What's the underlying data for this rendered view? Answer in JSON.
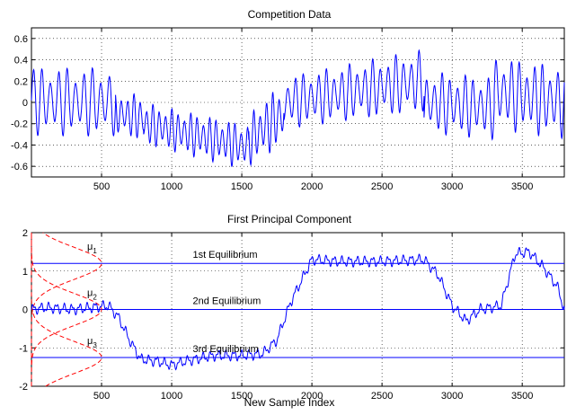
{
  "chart_data": [
    {
      "type": "line",
      "title": "Competition Data",
      "xlabel": "",
      "ylabel": "",
      "xlim": [
        0,
        3800
      ],
      "ylim": [
        -0.7,
        0.7
      ],
      "xticks": [
        500,
        1000,
        1500,
        2000,
        2500,
        3000,
        3500
      ],
      "xtick_labels": [
        "500",
        "1000",
        "1500",
        "2000",
        "2500",
        "3000",
        "3500"
      ],
      "yticks": [
        -0.6,
        -0.4,
        -0.2,
        0,
        0.2,
        0.4,
        0.6
      ],
      "ytick_labels": [
        "-0.6",
        "-0.4",
        "-0.2",
        "0",
        "0.2",
        "0.4",
        "0.6"
      ],
      "grid": true,
      "series": [
        {
          "color": "#0000ff",
          "segments": [
            {
              "x0": 0,
              "x1": 600,
              "base0": 0.02,
              "base1": 0.0,
              "amp0": 0.33,
              "amp1": 0.33,
              "period": 60
            },
            {
              "x0": 600,
              "x1": 800,
              "base0": -0.1,
              "base1": -0.15,
              "amp0": 0.2,
              "amp1": 0.22,
              "period": 45
            },
            {
              "x0": 800,
              "x1": 1550,
              "base0": -0.2,
              "base1": -0.42,
              "amp0": 0.2,
              "amp1": 0.22,
              "period": 45
            },
            {
              "x0": 1550,
              "x1": 1800,
              "base0": -0.35,
              "base1": -0.1,
              "amp0": 0.25,
              "amp1": 0.3,
              "period": 45
            },
            {
              "x0": 1800,
              "x1": 2800,
              "base0": 0.0,
              "base1": 0.2,
              "amp0": 0.25,
              "amp1": 0.3,
              "period": 55
            },
            {
              "x0": 2800,
              "x1": 3300,
              "base0": 0.0,
              "base1": -0.05,
              "amp0": 0.3,
              "amp1": 0.3,
              "period": 55
            },
            {
              "x0": 3300,
              "x1": 3800,
              "base0": 0.1,
              "base1": 0.0,
              "amp0": 0.35,
              "amp1": 0.35,
              "period": 55
            }
          ]
        }
      ]
    },
    {
      "type": "line",
      "title": "First Principal Component",
      "xlabel": "New Sample Index",
      "ylabel": "",
      "xlim": [
        0,
        3800
      ],
      "ylim": [
        -2,
        2
      ],
      "xticks": [
        500,
        1000,
        1500,
        2000,
        2500,
        3000,
        3500
      ],
      "xtick_labels": [
        "500",
        "1000",
        "1500",
        "2000",
        "2500",
        "3000",
        "3500"
      ],
      "yticks": [
        -2,
        -1,
        0,
        1,
        2
      ],
      "ytick_labels": [
        "-2",
        "-1",
        "0",
        "1",
        "2"
      ],
      "grid": true,
      "pc_series": {
        "color": "#0000ff",
        "points": [
          [
            0,
            0
          ],
          [
            100,
            0.05
          ],
          [
            300,
            0.0
          ],
          [
            550,
            0.1
          ],
          [
            620,
            -0.2
          ],
          [
            700,
            -0.8
          ],
          [
            780,
            -1.3
          ],
          [
            900,
            -1.35
          ],
          [
            1000,
            -1.45
          ],
          [
            1100,
            -1.35
          ],
          [
            1300,
            -1.2
          ],
          [
            1500,
            -1.2
          ],
          [
            1650,
            -1.15
          ],
          [
            1750,
            -0.8
          ],
          [
            1850,
            0.2
          ],
          [
            2000,
            1.3
          ],
          [
            2200,
            1.25
          ],
          [
            2500,
            1.25
          ],
          [
            2800,
            1.3
          ],
          [
            2900,
            0.9
          ],
          [
            3000,
            0.1
          ],
          [
            3100,
            -0.3
          ],
          [
            3200,
            0.0
          ],
          [
            3350,
            0.1
          ],
          [
            3450,
            1.45
          ],
          [
            3550,
            1.5
          ],
          [
            3650,
            1.1
          ],
          [
            3750,
            0.6
          ],
          [
            3800,
            0.0
          ]
        ]
      },
      "equilibria": [
        {
          "label": "1st Equilibrium",
          "y": 1.2,
          "color": "#0000ff"
        },
        {
          "label": "2nd Equilibrium",
          "y": 0.0,
          "color": "#0000ff"
        },
        {
          "label": "3rd Equilibrium",
          "y": -1.25,
          "color": "#0000ff"
        }
      ],
      "gaussians": [
        {
          "label": "μ",
          "sub": "1",
          "mean": 1.2,
          "sd": 0.42,
          "peak": 500
        },
        {
          "label": "μ",
          "sub": "2",
          "mean": 0.0,
          "sd": 0.42,
          "peak": 500
        },
        {
          "label": "μ",
          "sub": "3",
          "mean": -1.25,
          "sd": 0.42,
          "peak": 500
        }
      ],
      "gaussian_color": "#ff0000"
    }
  ]
}
